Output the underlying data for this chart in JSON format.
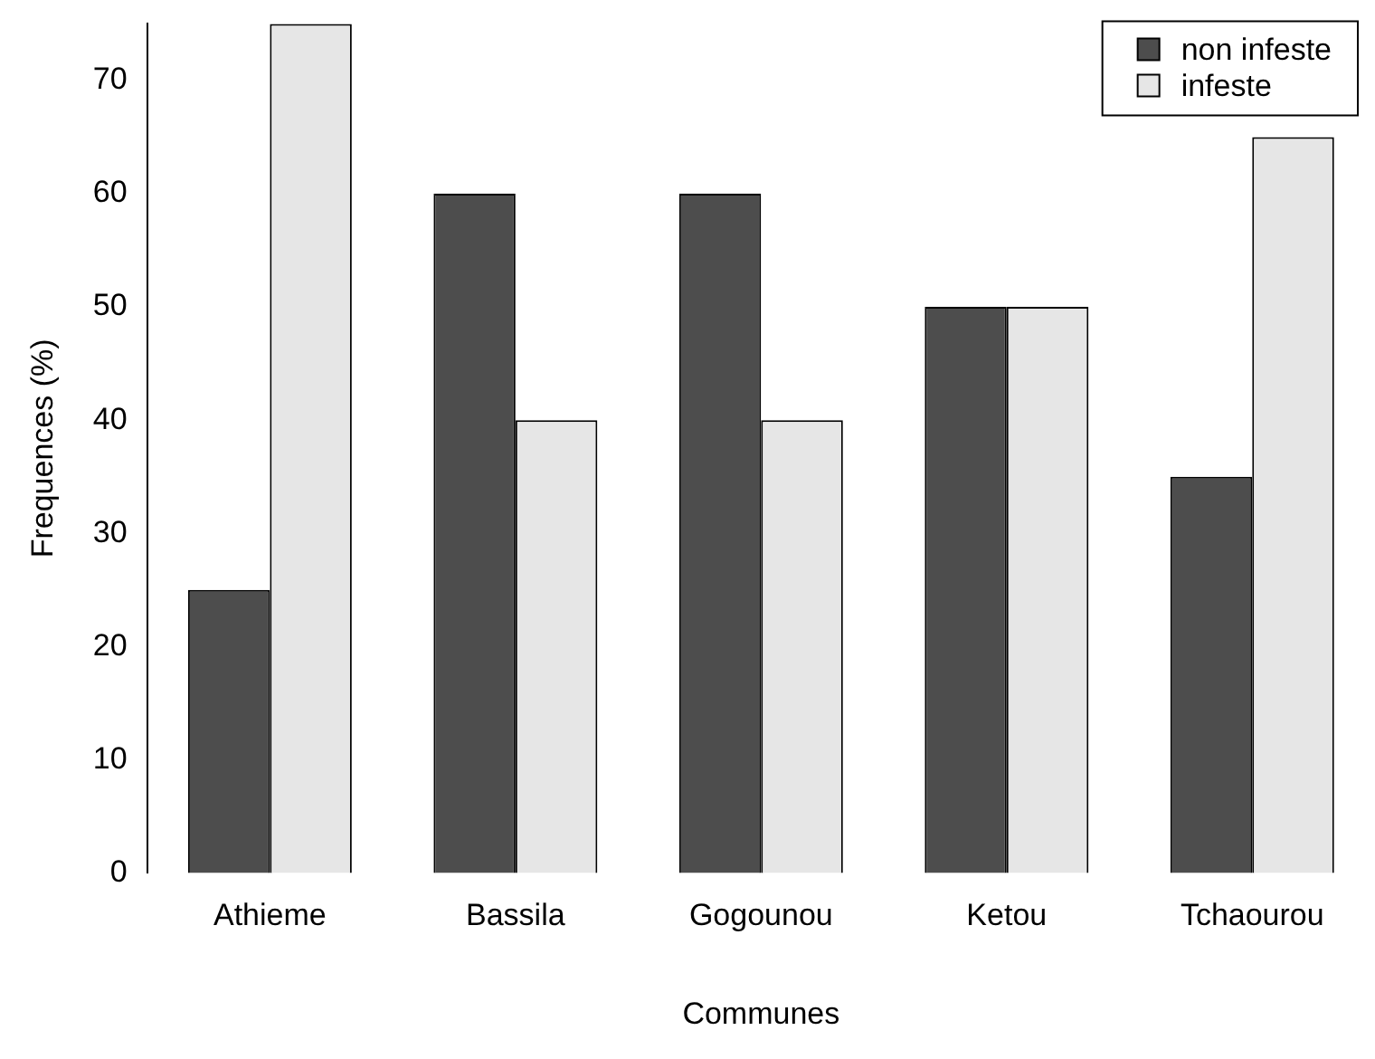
{
  "chart_data": {
    "type": "bar",
    "xlabel": "Communes",
    "ylabel": "Frequences (%)",
    "categories": [
      "Athieme",
      "Bassila",
      "Gogounou",
      "Ketou",
      "Tchaourou"
    ],
    "series": [
      {
        "name": "non infeste",
        "color": "#4d4d4d",
        "values": [
          25,
          60,
          60,
          50,
          35
        ]
      },
      {
        "name": "infeste",
        "color": "#e6e6e6",
        "values": [
          75,
          40,
          40,
          50,
          65
        ]
      }
    ],
    "ylim": [
      0,
      75
    ],
    "yticks": [
      0,
      10,
      20,
      30,
      40,
      50,
      60,
      70
    ],
    "grid": false,
    "legend": "top right"
  }
}
